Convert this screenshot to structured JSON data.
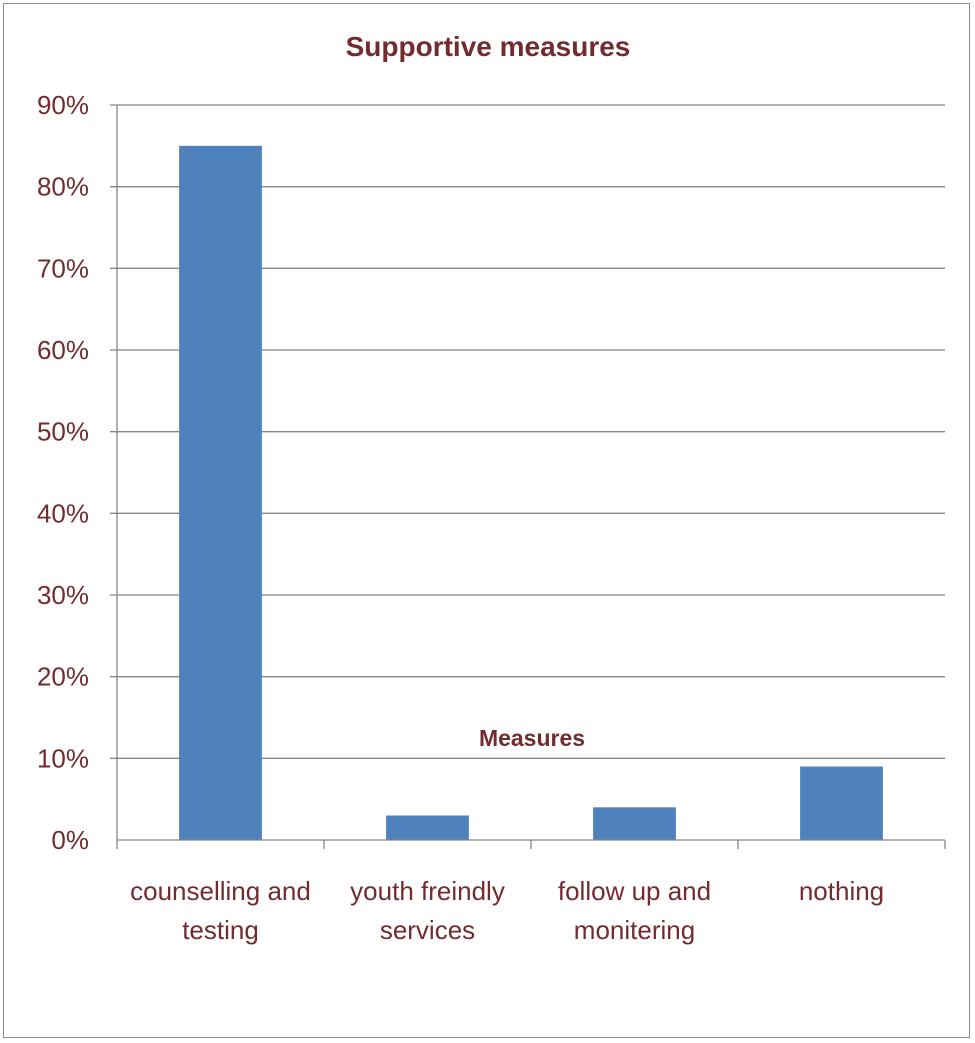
{
  "chart_data": {
    "type": "bar",
    "title": "Supportive measures",
    "xlabel": "Measures",
    "ylabel": "",
    "categories": [
      [
        "counselling and",
        "testing"
      ],
      [
        "youth freindly",
        "services"
      ],
      [
        "follow up and",
        "monitering"
      ],
      [
        "nothing"
      ]
    ],
    "values": [
      85,
      3,
      4,
      9
    ],
    "ylim": [
      0,
      90
    ],
    "y_ticks": [
      0,
      10,
      20,
      30,
      40,
      50,
      60,
      70,
      80,
      90
    ],
    "y_tick_labels": [
      "0%",
      "10%",
      "20%",
      "30%",
      "40%",
      "50%",
      "60%",
      "70%",
      "80%",
      "90%"
    ],
    "grid": true,
    "legend": "none",
    "colors": {
      "bar": "#4f81bd",
      "text": "#722b2f",
      "grid": "#868686",
      "border": "#8a8a8a"
    }
  }
}
